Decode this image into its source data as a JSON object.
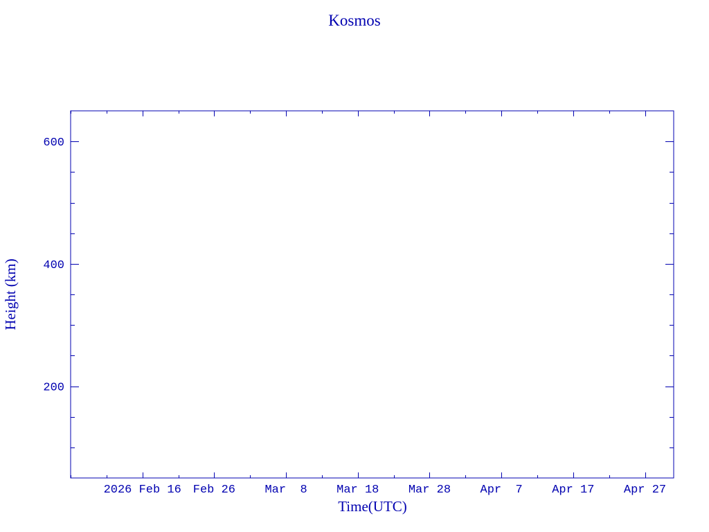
{
  "chart_data": {
    "type": "line",
    "title": "Kosmos",
    "xlabel": "Time(UTC)",
    "ylabel": "Height (km)",
    "xlim": [
      "2026-02-06",
      "2026-05-01"
    ],
    "ylim": [
      50,
      650
    ],
    "x_ticks": [
      {
        "date": "2026-02-16",
        "label": "2026 Feb 16"
      },
      {
        "date": "2026-02-26",
        "label": "Feb 26"
      },
      {
        "date": "2026-03-08",
        "label": "Mar  8"
      },
      {
        "date": "2026-03-18",
        "label": "Mar 18"
      },
      {
        "date": "2026-03-28",
        "label": "Mar 28"
      },
      {
        "date": "2026-04-07",
        "label": "Apr  7"
      },
      {
        "date": "2026-04-17",
        "label": "Apr 17"
      },
      {
        "date": "2026-04-27",
        "label": "Apr 27"
      }
    ],
    "x_minor_tick_days": 5,
    "y_ticks": [
      200,
      400,
      600
    ],
    "y_minor_tick_step": 50,
    "series": [],
    "grid": false,
    "color": "#0000b0"
  }
}
